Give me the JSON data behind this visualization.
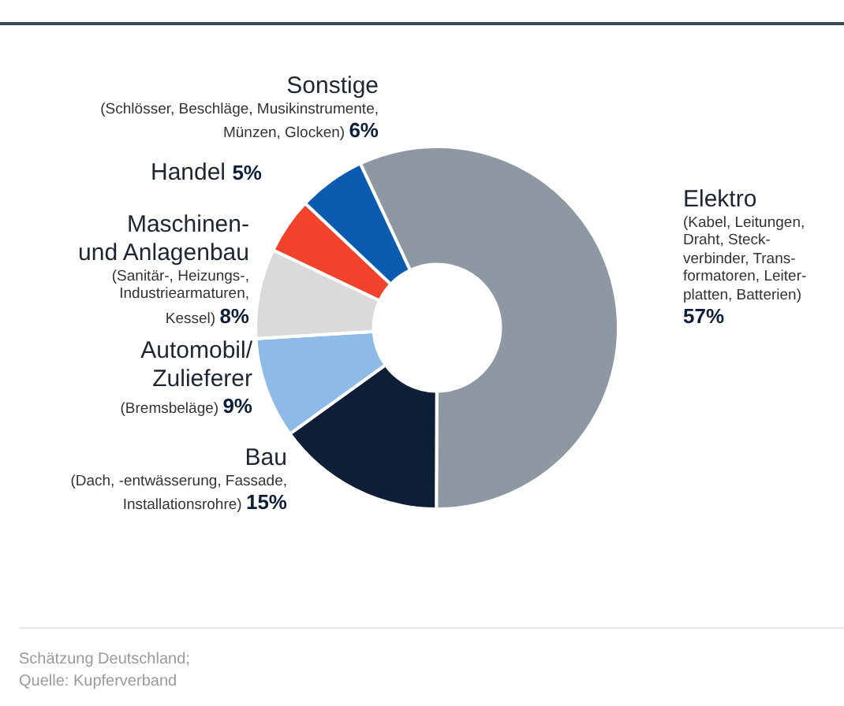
{
  "chart_data": {
    "type": "donut",
    "categories": [
      "Elektro",
      "Bau",
      "Automobil/\nZulieferer",
      "Maschinen-\nund Anlagenbau",
      "Handel",
      "Sonstige"
    ],
    "values": [
      57,
      15,
      9,
      8,
      5,
      6
    ],
    "value_labels": [
      "57%",
      "15%",
      "9%",
      "8%",
      "5%",
      "6%"
    ],
    "colors": [
      "#8e98a2",
      "#0e1e37",
      "#8dbae6",
      "#dadada",
      "#f1432c",
      "#0b5bb0"
    ],
    "legend": false,
    "annotations": [
      {
        "text": "(Kabel, Leitungen,\nDraht, Steck-\nverbinder, Trans-\nformatoren, Leiter-\nplatten, Batterien)",
        "x": "Elektro"
      },
      {
        "text": "(Dach, -entwässerung, Fassade,\nInstallationsrohre)",
        "x": "Bau"
      },
      {
        "text": "(Bremsbeläge)",
        "x": "Automobil/\nZulieferer"
      },
      {
        "text": "(Sanitär-, Heizungs-,\nIndustriearmaturen,\nKessel)",
        "x": "Maschinen-\nund Anlagenbau"
      },
      {
        "text": "(Schlösser, Beschläge, Musikinstrumente,\nMünzen, Glocken)",
        "x": "Sonstige"
      },
      "Schätzung Deutschland;\nQuelle: Kupferverband"
    ]
  }
}
